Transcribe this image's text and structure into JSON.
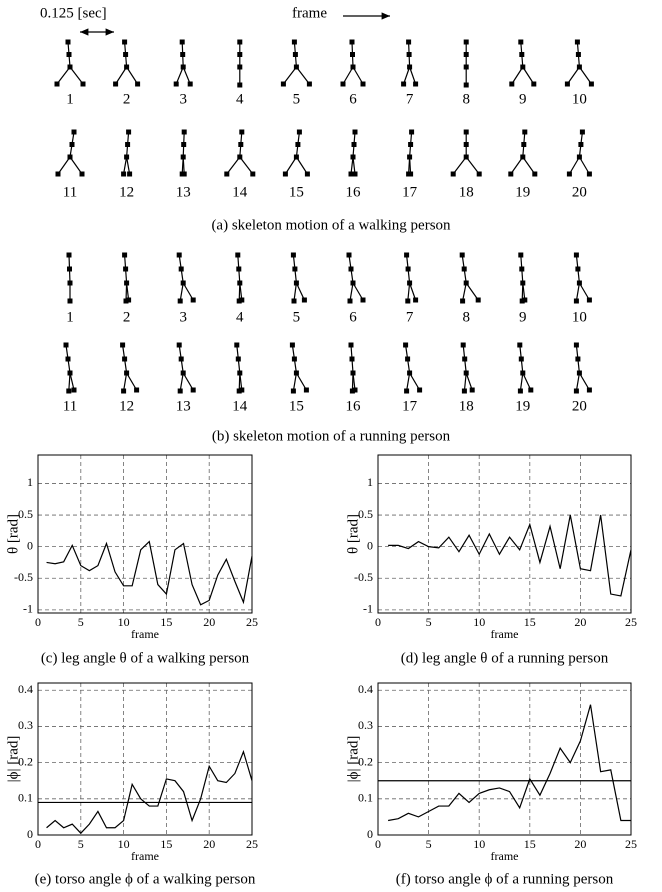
{
  "header": {
    "interval": "0.125 [sec]",
    "direction": "frame"
  },
  "walking": {
    "frames": [
      "1",
      "2",
      "3",
      "4",
      "5",
      "6",
      "7",
      "8",
      "9",
      "10",
      "11",
      "12",
      "13",
      "14",
      "15",
      "16",
      "17",
      "18",
      "19",
      "20"
    ],
    "caption": "(a) skeleton motion of a walking person"
  },
  "running": {
    "frames": [
      "1",
      "2",
      "3",
      "4",
      "5",
      "6",
      "7",
      "8",
      "9",
      "10",
      "11",
      "12",
      "13",
      "14",
      "15",
      "16",
      "17",
      "18",
      "19",
      "20"
    ],
    "caption": "(b) skeleton motion of a running person"
  },
  "chart_data": [
    {
      "type": "line",
      "title": "(c) leg angle θ of a walking person",
      "xlabel": "frame",
      "ylabel": "θ [rad]",
      "color": "#000000",
      "grid": true,
      "x": [
        1,
        2,
        3,
        4,
        5,
        6,
        7,
        8,
        9,
        10,
        11,
        12,
        13,
        14,
        15,
        16,
        17,
        18,
        19,
        20,
        21,
        22,
        23,
        24,
        25
      ],
      "values": [
        -0.25,
        -0.27,
        -0.24,
        0.02,
        -0.3,
        -0.38,
        -0.3,
        0.05,
        -0.4,
        -0.62,
        -0.62,
        -0.05,
        0.08,
        -0.6,
        -0.75,
        -0.05,
        0.05,
        -0.6,
        -0.92,
        -0.85,
        -0.45,
        -0.2,
        -0.55,
        -0.88,
        -0.15
      ],
      "xlim": [
        0,
        25
      ],
      "ylim": [
        -1.05,
        1.45
      ],
      "xticks": [
        0,
        5,
        10,
        15,
        20,
        25
      ],
      "yticks": [
        -1,
        -0.5,
        0,
        0.5,
        1
      ]
    },
    {
      "type": "line",
      "title": "(d) leg angle θ of a running person",
      "xlabel": "frame",
      "ylabel": "θ [rad]",
      "color": "#000000",
      "grid": true,
      "x": [
        1,
        2,
        3,
        4,
        5,
        6,
        7,
        8,
        9,
        10,
        11,
        12,
        13,
        14,
        15,
        16,
        17,
        18,
        19,
        20,
        21,
        22,
        23,
        24,
        25
      ],
      "values": [
        0.02,
        0.02,
        -0.03,
        0.08,
        0.0,
        -0.02,
        0.15,
        -0.08,
        0.18,
        -0.12,
        0.2,
        -0.12,
        0.15,
        -0.05,
        0.35,
        -0.25,
        0.32,
        -0.35,
        0.5,
        -0.35,
        -0.38,
        0.5,
        -0.75,
        -0.78,
        -0.05
      ],
      "xlim": [
        0,
        25
      ],
      "ylim": [
        -1.05,
        1.45
      ],
      "xticks": [
        0,
        5,
        10,
        15,
        20,
        25
      ],
      "yticks": [
        -1,
        -0.5,
        0,
        0.5,
        1
      ]
    },
    {
      "type": "line",
      "title": "(e) torso angle ϕ of a walking person",
      "xlabel": "frame",
      "ylabel": "|ϕ| [rad]",
      "color": "#000000",
      "grid": true,
      "threshold": 0.09,
      "x": [
        1,
        2,
        3,
        4,
        5,
        6,
        7,
        8,
        9,
        10,
        11,
        12,
        13,
        14,
        15,
        16,
        17,
        18,
        19,
        20,
        21,
        22,
        23,
        24,
        25
      ],
      "values": [
        0.02,
        0.04,
        0.02,
        0.03,
        0.005,
        0.03,
        0.065,
        0.02,
        0.02,
        0.04,
        0.14,
        0.1,
        0.08,
        0.08,
        0.155,
        0.15,
        0.12,
        0.04,
        0.1,
        0.19,
        0.15,
        0.145,
        0.17,
        0.23,
        0.15
      ],
      "xlim": [
        0,
        25
      ],
      "ylim": [
        0,
        0.42
      ],
      "xticks": [
        0,
        5,
        10,
        15,
        20,
        25
      ],
      "yticks": [
        0,
        0.1,
        0.2,
        0.3,
        0.4
      ]
    },
    {
      "type": "line",
      "title": "(f) torso angle ϕ of a running person",
      "xlabel": "frame",
      "ylabel": "|ϕ| [rad]",
      "color": "#000000",
      "grid": true,
      "threshold": 0.15,
      "x": [
        1,
        2,
        3,
        4,
        5,
        6,
        7,
        8,
        9,
        10,
        11,
        12,
        13,
        14,
        15,
        16,
        17,
        18,
        19,
        20,
        21,
        22,
        23,
        24,
        25
      ],
      "values": [
        0.04,
        0.045,
        0.06,
        0.05,
        0.065,
        0.08,
        0.08,
        0.115,
        0.09,
        0.115,
        0.125,
        0.13,
        0.12,
        0.075,
        0.155,
        0.11,
        0.17,
        0.24,
        0.2,
        0.26,
        0.36,
        0.175,
        0.18,
        0.04,
        0.04
      ],
      "xlim": [
        0,
        25
      ],
      "ylim": [
        0,
        0.42
      ],
      "xticks": [
        0,
        5,
        10,
        15,
        20,
        25
      ],
      "yticks": [
        0,
        0.1,
        0.2,
        0.3,
        0.4
      ]
    }
  ]
}
